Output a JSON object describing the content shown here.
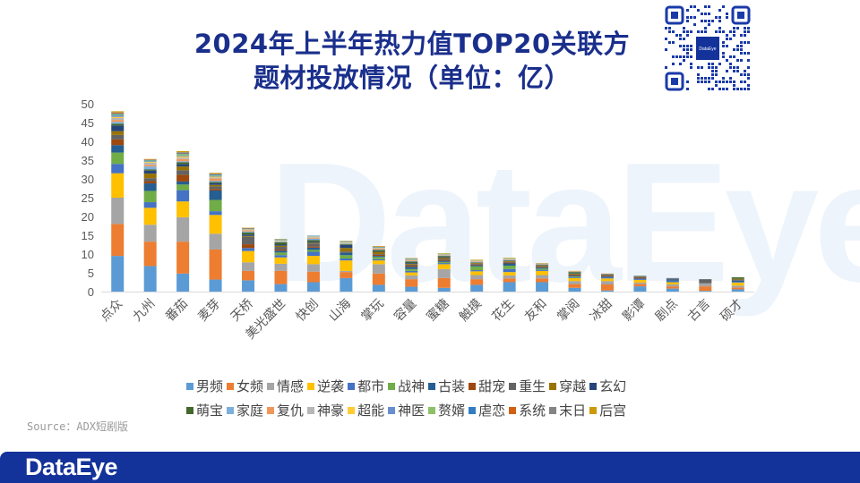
{
  "header": {
    "title_line1": "2024年上半年热力值TOP20关联方",
    "title_line2": "题材投放情况（单位：亿）",
    "qr_label": "DataEye"
  },
  "watermark": "DataEye",
  "source": "Source：ADX短剧版",
  "footer": {
    "brand": "DataEye",
    "color": "#13329a"
  },
  "chart_data": {
    "type": "bar",
    "stacked": true,
    "title": "2024年上半年热力值TOP20关联方题材投放情况（单位：亿）",
    "xlabel": "",
    "ylabel": "",
    "ylim": [
      0,
      50
    ],
    "yticks": [
      0,
      5,
      10,
      15,
      20,
      25,
      30,
      35,
      40,
      45,
      50
    ],
    "grid": false,
    "legend_position": "bottom",
    "categories": [
      "点众",
      "九州",
      "番茄",
      "麦芽",
      "天桥",
      "美光盛世",
      "快创",
      "山海",
      "掌玩",
      "容量",
      "蜜糖",
      "触摸",
      "花生",
      "友和",
      "掌阅",
      "冰甜",
      "影谭",
      "剧点",
      "古言",
      "硕才"
    ],
    "series": [
      {
        "name": "男频",
        "color": "#5b9bd5",
        "values": [
          9.5,
          6.8,
          4.8,
          3.2,
          3.0,
          2.0,
          2.5,
          3.6,
          1.8,
          1.3,
          1.0,
          1.8,
          2.5,
          2.5,
          1.0,
          0.3,
          1.4,
          0.8,
          0.2,
          0.6
        ]
      },
      {
        "name": "女频",
        "color": "#ed7d31",
        "values": [
          8.5,
          6.5,
          8.5,
          8.0,
          2.5,
          3.5,
          2.8,
          1.6,
          3.0,
          2.0,
          2.6,
          1.5,
          1.0,
          1.0,
          1.0,
          1.6,
          0.6,
          0.6,
          1.2,
          0.5
        ]
      },
      {
        "name": "情感",
        "color": "#a5a5a5",
        "values": [
          7.0,
          4.5,
          6.5,
          4.2,
          2.3,
          1.9,
          2.0,
          0.3,
          2.5,
          1.0,
          2.4,
          1.1,
          0.8,
          0.9,
          0.8,
          0.9,
          0.4,
          0.5,
          0.8,
          0.5
        ]
      },
      {
        "name": "逆袭",
        "color": "#ffc000",
        "values": [
          6.5,
          4.5,
          4.2,
          5.0,
          3.0,
          1.7,
          2.2,
          2.8,
          1.0,
          0.8,
          1.3,
          1.0,
          0.9,
          1.1,
          0.8,
          0.7,
          0.7,
          0.6,
          0,
          0.8
        ]
      },
      {
        "name": "都市",
        "color": "#4472c4",
        "values": [
          2.5,
          1.5,
          3.0,
          1.0,
          0.8,
          0.6,
          1.1,
          0.5,
          0.3,
          0.4,
          0.3,
          0.3,
          0.8,
          0.3,
          0.2,
          0.3,
          0.2,
          0.4,
          0,
          0.2
        ]
      },
      {
        "name": "战神",
        "color": "#70ad47",
        "values": [
          3.0,
          3.0,
          1.5,
          3.0,
          0,
          0.7,
          0.5,
          0.9,
          0.6,
          0.5,
          0.3,
          1.0,
          0.9,
          0.3,
          0.2,
          0,
          0,
          0,
          0,
          0
        ]
      },
      {
        "name": "古装",
        "color": "#255e91",
        "values": [
          2.0,
          2.0,
          0.8,
          2.5,
          0,
          0.5,
          0.6,
          0.7,
          0.3,
          0.6,
          0.3,
          0.3,
          0.6,
          0.3,
          0.2,
          0.2,
          0.2,
          0.4,
          0,
          0.3
        ]
      },
      {
        "name": "甜宠",
        "color": "#9e480e",
        "values": [
          1.5,
          0.6,
          1.8,
          0.4,
          1.0,
          0.3,
          0.3,
          0.1,
          0.3,
          0.3,
          0.3,
          0.2,
          0.2,
          0.2,
          0.2,
          0.2,
          0.2,
          0.1,
          0,
          0
        ]
      },
      {
        "name": "重生",
        "color": "#636363",
        "values": [
          1.2,
          0.8,
          1.2,
          0.7,
          2.0,
          0.7,
          0.8,
          0.2,
          0.2,
          0.3,
          0.3,
          0.2,
          0.2,
          0.2,
          0.2,
          0.2,
          0.2,
          0.1,
          1.1,
          0.3
        ]
      },
      {
        "name": "穿越",
        "color": "#997300",
        "values": [
          1.0,
          1.2,
          1.0,
          0.4,
          0.2,
          0.3,
          0.2,
          0.9,
          0.6,
          0.2,
          0.3,
          0.2,
          0.2,
          0.2,
          0.2,
          0.1,
          0.1,
          0,
          0,
          0.2
        ]
      },
      {
        "name": "玄幻",
        "color": "#264478",
        "values": [
          1.5,
          0.8,
          0.6,
          0.5,
          0.4,
          0.3,
          0.3,
          0.8,
          0.2,
          0.2,
          0.2,
          0.1,
          0.1,
          0.1,
          0.1,
          0.1,
          0.1,
          0.1,
          0,
          0
        ]
      },
      {
        "name": "萌宝",
        "color": "#43682b",
        "values": [
          0.5,
          0.3,
          0.5,
          0.3,
          0.5,
          0.6,
          0.4,
          0.2,
          0.3,
          0.4,
          0.2,
          0.1,
          0.1,
          0.1,
          0.3,
          0.1,
          0.1,
          0,
          0,
          0.4
        ]
      },
      {
        "name": "家庭",
        "color": "#7cafdd",
        "values": [
          0.5,
          0.8,
          0.3,
          0.3,
          0.3,
          0.2,
          0.4,
          0.2,
          0.1,
          0.1,
          0.1,
          0.1,
          0.1,
          0.1,
          0.1,
          0,
          0,
          0,
          0,
          0
        ]
      },
      {
        "name": "复仇",
        "color": "#f1975a",
        "values": [
          0.5,
          0.4,
          0.6,
          0.6,
          0.3,
          0.1,
          0.2,
          0.1,
          0.2,
          0.2,
          0.1,
          0.1,
          0.1,
          0.1,
          0.1,
          0.1,
          0,
          0,
          0,
          0
        ]
      },
      {
        "name": "神豪",
        "color": "#b7b7b7",
        "values": [
          0.5,
          0.6,
          0.4,
          0.3,
          0.1,
          0.1,
          0.2,
          0.1,
          0.1,
          0.1,
          0.1,
          0.1,
          0.1,
          0.1,
          0,
          0,
          0,
          0,
          0,
          0
        ]
      },
      {
        "name": "超能",
        "color": "#ffcd33",
        "values": [
          0.3,
          0.2,
          0.3,
          0.2,
          0.1,
          0.1,
          0.1,
          0.1,
          0.1,
          0.1,
          0.1,
          0.1,
          0.1,
          0,
          0,
          0,
          0,
          0,
          0,
          0
        ]
      },
      {
        "name": "神医",
        "color": "#698ed0",
        "values": [
          0.4,
          0.2,
          0.2,
          0.2,
          0.1,
          0.1,
          0.1,
          0.1,
          0.1,
          0.1,
          0.1,
          0.1,
          0.1,
          0,
          0,
          0,
          0,
          0,
          0,
          0
        ]
      },
      {
        "name": "赘婿",
        "color": "#8cc168",
        "values": [
          0.3,
          0.2,
          0.4,
          0.2,
          0.1,
          0.1,
          0.1,
          0.1,
          0.1,
          0.1,
          0.1,
          0.1,
          0.1,
          0,
          0,
          0,
          0,
          0,
          0,
          0
        ]
      },
      {
        "name": "虐恋",
        "color": "#327dc2",
        "values": [
          0.2,
          0.1,
          0.2,
          0.2,
          0.1,
          0.1,
          0.1,
          0.1,
          0.1,
          0.1,
          0,
          0,
          0,
          0,
          0,
          0,
          0,
          0,
          0,
          0
        ]
      },
      {
        "name": "系统",
        "color": "#d26012",
        "values": [
          0.2,
          0.1,
          0.1,
          0.1,
          0.1,
          0,
          0,
          0,
          0.1,
          0,
          0,
          0,
          0,
          0,
          0,
          0,
          0,
          0,
          0,
          0
        ]
      },
      {
        "name": "末日",
        "color": "#848484",
        "values": [
          0.1,
          0.1,
          0.2,
          0.1,
          0,
          0,
          0,
          0,
          0,
          0,
          0,
          0,
          0,
          0,
          0,
          0,
          0,
          0,
          0,
          0
        ]
      },
      {
        "name": "后宫",
        "color": "#cc9a06",
        "values": [
          0.3,
          0.1,
          0.3,
          0.2,
          0.1,
          0.1,
          0,
          0.1,
          0.1,
          0.1,
          0.1,
          0.1,
          0.1,
          0.1,
          0.1,
          0,
          0,
          0,
          0,
          0
        ]
      }
    ]
  }
}
